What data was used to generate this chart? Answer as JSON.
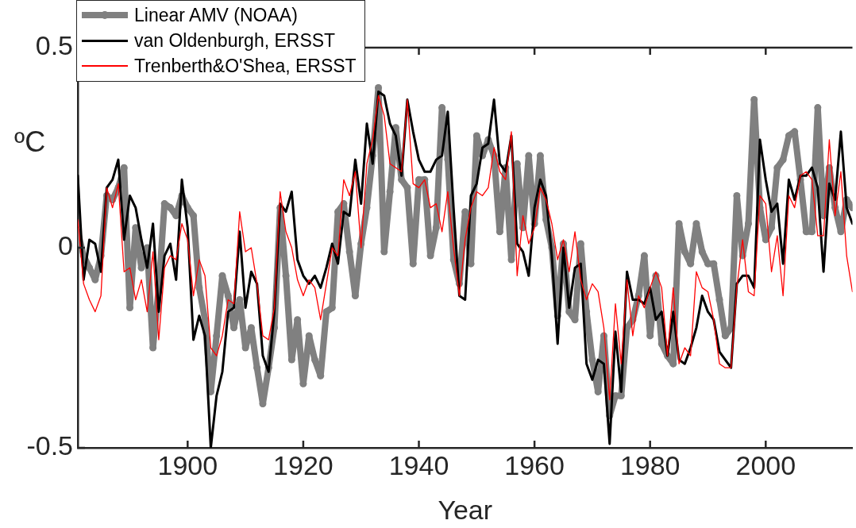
{
  "chart_data": {
    "type": "line",
    "xlabel": "Year",
    "ylabel": "ºC",
    "xlim": [
      1881,
      2015
    ],
    "xticks": [
      1900,
      1920,
      1940,
      1960,
      1980,
      2000
    ],
    "ylim": [
      -0.5,
      0.5
    ],
    "yticks": [
      -0.5,
      0,
      0.5
    ],
    "legend": "top left",
    "x": [
      1881,
      1882,
      1883,
      1884,
      1885,
      1886,
      1887,
      1888,
      1889,
      1890,
      1891,
      1892,
      1893,
      1894,
      1895,
      1896,
      1897,
      1898,
      1899,
      1900,
      1901,
      1902,
      1903,
      1904,
      1905,
      1906,
      1907,
      1908,
      1909,
      1910,
      1911,
      1912,
      1913,
      1914,
      1915,
      1916,
      1917,
      1918,
      1919,
      1920,
      1921,
      1922,
      1923,
      1924,
      1925,
      1926,
      1927,
      1928,
      1929,
      1930,
      1931,
      1932,
      1933,
      1934,
      1935,
      1936,
      1937,
      1938,
      1939,
      1940,
      1941,
      1942,
      1943,
      1944,
      1945,
      1946,
      1947,
      1948,
      1949,
      1950,
      1951,
      1952,
      1953,
      1954,
      1955,
      1956,
      1957,
      1958,
      1959,
      1960,
      1961,
      1962,
      1963,
      1964,
      1965,
      1966,
      1967,
      1968,
      1969,
      1970,
      1971,
      1972,
      1973,
      1974,
      1975,
      1976,
      1977,
      1978,
      1979,
      1980,
      1981,
      1982,
      1983,
      1984,
      1985,
      1986,
      1987,
      1988,
      1989,
      1990,
      1991,
      1992,
      1993,
      1994,
      1995,
      1996,
      1997,
      1998,
      1999,
      2000,
      2001,
      2002,
      2003,
      2004,
      2005,
      2006,
      2007,
      2008,
      2009,
      2010,
      2011,
      2012,
      2013,
      2014,
      2015
    ],
    "series": [
      {
        "name": "Linear AMV (NOAA)",
        "color": "#808080",
        "marker": "circle",
        "values": [
          0.04,
          -0.02,
          -0.05,
          -0.08,
          -0.02,
          0.13,
          0.12,
          0.15,
          0.2,
          -0.15,
          0.05,
          -0.05,
          0,
          -0.25,
          -0.1,
          0.11,
          0.1,
          0.08,
          0.13,
          0.1,
          0.08,
          -0.1,
          -0.18,
          -0.36,
          -0.22,
          -0.07,
          -0.12,
          -0.2,
          -0.13,
          -0.25,
          -0.2,
          -0.3,
          -0.39,
          -0.3,
          -0.2,
          0.1,
          -0.07,
          -0.28,
          -0.18,
          -0.34,
          -0.22,
          -0.28,
          -0.32,
          -0.16,
          -0.15,
          0.09,
          0.11,
          -0.01,
          -0.12,
          0.01,
          0.1,
          0.23,
          0.4,
          -0.01,
          0.14,
          0.3,
          0.17,
          0.15,
          -0.04,
          0.17,
          0.17,
          -0.02,
          0.05,
          0.35,
          0.22,
          -0.03,
          -0.09,
          0.09,
          -0.04,
          0.28,
          0.23,
          0.27,
          0.23,
          0.04,
          0.2,
          -0.03,
          0.21,
          0.05,
          0.23,
          0.06,
          0.23,
          0.07,
          0,
          -0.17,
          0.01,
          -0.16,
          -0.18,
          0.01,
          -0.16,
          -0.28,
          -0.36,
          -0.22,
          -0.42,
          -0.37,
          -0.37,
          -0.2,
          -0.18,
          -0.12,
          -0.02,
          -0.22,
          -0.07,
          -0.24,
          -0.27,
          -0.29,
          0.06,
          -0.01,
          -0.04,
          0.06,
          -0.01,
          -0.04,
          -0.04,
          -0.13,
          -0.22,
          -0.2,
          0.13,
          -0.02,
          0.06,
          0.37,
          0.1,
          0.02,
          0.05,
          0.2,
          0.22,
          0.28,
          0.29,
          0.17,
          0.04,
          0.04,
          0.35,
          0.08,
          0.2,
          0.1,
          0.04,
          0.12,
          0.1
        ]
      },
      {
        "name": "van Oldenburgh, ERSST",
        "color": "#000000",
        "values": [
          0.18,
          -0.08,
          0.02,
          0.01,
          -0.06,
          0.15,
          0.17,
          0.22,
          0.02,
          0.13,
          0.1,
          0.02,
          -0.05,
          0.06,
          -0.16,
          -0.02,
          0.01,
          -0.08,
          0.17,
          0.05,
          -0.23,
          -0.17,
          -0.22,
          -0.5,
          -0.37,
          -0.31,
          -0.16,
          -0.15,
          0.04,
          -0.15,
          -0.06,
          -0.09,
          -0.27,
          -0.31,
          -0.16,
          0.11,
          0.09,
          0.14,
          -0.03,
          -0.07,
          -0.09,
          -0.07,
          -0.1,
          -0.05,
          0.01,
          -0.04,
          0.09,
          0.08,
          0.22,
          0.11,
          0.31,
          0.21,
          0.39,
          0.38,
          0.31,
          0.28,
          0.18,
          0.37,
          0.29,
          0.22,
          0.19,
          0.19,
          0.22,
          0.23,
          0.34,
          0.1,
          -0.12,
          -0.13,
          0.13,
          0.16,
          0.25,
          0.26,
          0.37,
          0.21,
          0.19,
          0.28,
          0.01,
          -0.01,
          -0.07,
          0.1,
          0.17,
          0.13,
          -0.02,
          -0.24,
          0,
          -0.15,
          -0.05,
          -0.04,
          -0.29,
          -0.33,
          -0.28,
          -0.29,
          -0.49,
          -0.21,
          -0.36,
          -0.06,
          -0.13,
          -0.13,
          -0.14,
          -0.1,
          -0.18,
          -0.16,
          -0.27,
          -0.16,
          -0.28,
          -0.29,
          -0.25,
          -0.2,
          -0.12,
          -0.16,
          -0.18,
          -0.26,
          -0.28,
          -0.3,
          -0.09,
          -0.07,
          -0.07,
          -0.1,
          0.27,
          0.17,
          0.09,
          0.11,
          -0.04,
          0.17,
          0.12,
          0.18,
          0.18,
          0.2,
          0.15,
          -0.06,
          0.16,
          0.12,
          0.29,
          0.1,
          0.06
        ]
      },
      {
        "name": "Trenberth&O'Shea, ERSST",
        "color": "#ff0000",
        "values": [
          0.07,
          -0.09,
          -0.13,
          -0.16,
          -0.12,
          0.15,
          0.1,
          0.16,
          -0.06,
          -0.05,
          -0.13,
          -0.08,
          -0.16,
          -0.01,
          -0.23,
          -0.05,
          -0.02,
          -0.03,
          0.06,
          0.02,
          -0.12,
          -0.03,
          -0.07,
          -0.25,
          -0.27,
          -0.22,
          -0.13,
          -0.14,
          0.09,
          -0.01,
          0,
          -0.09,
          -0.22,
          -0.23,
          -0.15,
          0.14,
          0.04,
          0,
          -0.08,
          -0.12,
          -0.08,
          -0.1,
          -0.18,
          -0.09,
          0,
          -0.02,
          0.17,
          0.13,
          0.19,
          0,
          0.21,
          0.27,
          0.38,
          0.33,
          0.21,
          0.2,
          0.19,
          0.37,
          0.16,
          0.15,
          0.17,
          0.1,
          0.11,
          0.04,
          0.14,
          0,
          -0.12,
          0.02,
          0.1,
          0.14,
          0.13,
          0.15,
          0.25,
          0.19,
          0.17,
          0.29,
          -0.07,
          0.08,
          0.01,
          0.05,
          0.15,
          0.12,
          0.06,
          -0.03,
          0.02,
          -0.06,
          0.04,
          -0.08,
          -0.13,
          -0.09,
          -0.11,
          -0.2,
          -0.38,
          -0.14,
          -0.29,
          -0.08,
          -0.22,
          -0.12,
          -0.15,
          -0.1,
          -0.06,
          -0.1,
          -0.27,
          -0.1,
          -0.29,
          -0.25,
          -0.27,
          -0.06,
          -0.1,
          -0.11,
          -0.18,
          -0.29,
          -0.3,
          -0.3,
          -0.1,
          0.02,
          -0.11,
          -0.12,
          0.13,
          0.11,
          -0.06,
          0.03,
          -0.12,
          0.13,
          0.1,
          0.18,
          0.19,
          0.17,
          0.03,
          0.03,
          0.27,
          0.08,
          0.19,
          -0.02,
          -0.11
        ]
      }
    ]
  }
}
